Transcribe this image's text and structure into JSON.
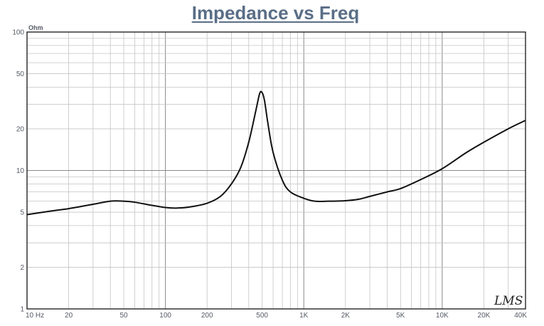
{
  "chart_data": {
    "type": "line",
    "title": "Impedance vs Freq",
    "ylabel": "Ohm",
    "xlabel": "",
    "x_scale": "log",
    "y_scale": "log",
    "xlim": [
      10,
      40000
    ],
    "ylim": [
      1,
      100
    ],
    "grid": true,
    "x_ticks": [
      {
        "v": 10,
        "label": "10 Hz"
      },
      {
        "v": 20,
        "label": "20"
      },
      {
        "v": 50,
        "label": "50"
      },
      {
        "v": 100,
        "label": "100"
      },
      {
        "v": 200,
        "label": "200"
      },
      {
        "v": 500,
        "label": "500"
      },
      {
        "v": 1000,
        "label": "1K"
      },
      {
        "v": 2000,
        "label": "2K"
      },
      {
        "v": 5000,
        "label": "5K"
      },
      {
        "v": 10000,
        "label": "10K"
      },
      {
        "v": 20000,
        "label": "20K"
      },
      {
        "v": 40000,
        "label": "40K"
      }
    ],
    "y_ticks": [
      {
        "v": 1,
        "label": "1"
      },
      {
        "v": 2,
        "label": "2"
      },
      {
        "v": 5,
        "label": "5"
      },
      {
        "v": 10,
        "label": "10"
      },
      {
        "v": 20,
        "label": "20"
      },
      {
        "v": 50,
        "label": "50"
      },
      {
        "v": 100,
        "label": "100"
      }
    ],
    "series": [
      {
        "color": "#111111",
        "points": [
          [
            10,
            4.8
          ],
          [
            15,
            5.1
          ],
          [
            20,
            5.3
          ],
          [
            30,
            5.7
          ],
          [
            40,
            6.0
          ],
          [
            50,
            6.0
          ],
          [
            60,
            5.9
          ],
          [
            80,
            5.6
          ],
          [
            100,
            5.4
          ],
          [
            120,
            5.35
          ],
          [
            150,
            5.45
          ],
          [
            200,
            5.8
          ],
          [
            250,
            6.5
          ],
          [
            300,
            8.0
          ],
          [
            350,
            10.5
          ],
          [
            400,
            16.0
          ],
          [
            450,
            27.0
          ],
          [
            480,
            36.0
          ],
          [
            500,
            36.5
          ],
          [
            520,
            32.0
          ],
          [
            550,
            22.0
          ],
          [
            600,
            13.5
          ],
          [
            700,
            8.5
          ],
          [
            800,
            7.0
          ],
          [
            1000,
            6.3
          ],
          [
            1200,
            6.0
          ],
          [
            1500,
            6.0
          ],
          [
            2000,
            6.05
          ],
          [
            2500,
            6.2
          ],
          [
            3000,
            6.5
          ],
          [
            4000,
            7.0
          ],
          [
            5000,
            7.4
          ],
          [
            7000,
            8.6
          ],
          [
            10000,
            10.3
          ],
          [
            15000,
            13.5
          ],
          [
            20000,
            16.0
          ],
          [
            30000,
            20.0
          ],
          [
            40000,
            23.0
          ]
        ]
      }
    ]
  },
  "logo_text": "LMS"
}
